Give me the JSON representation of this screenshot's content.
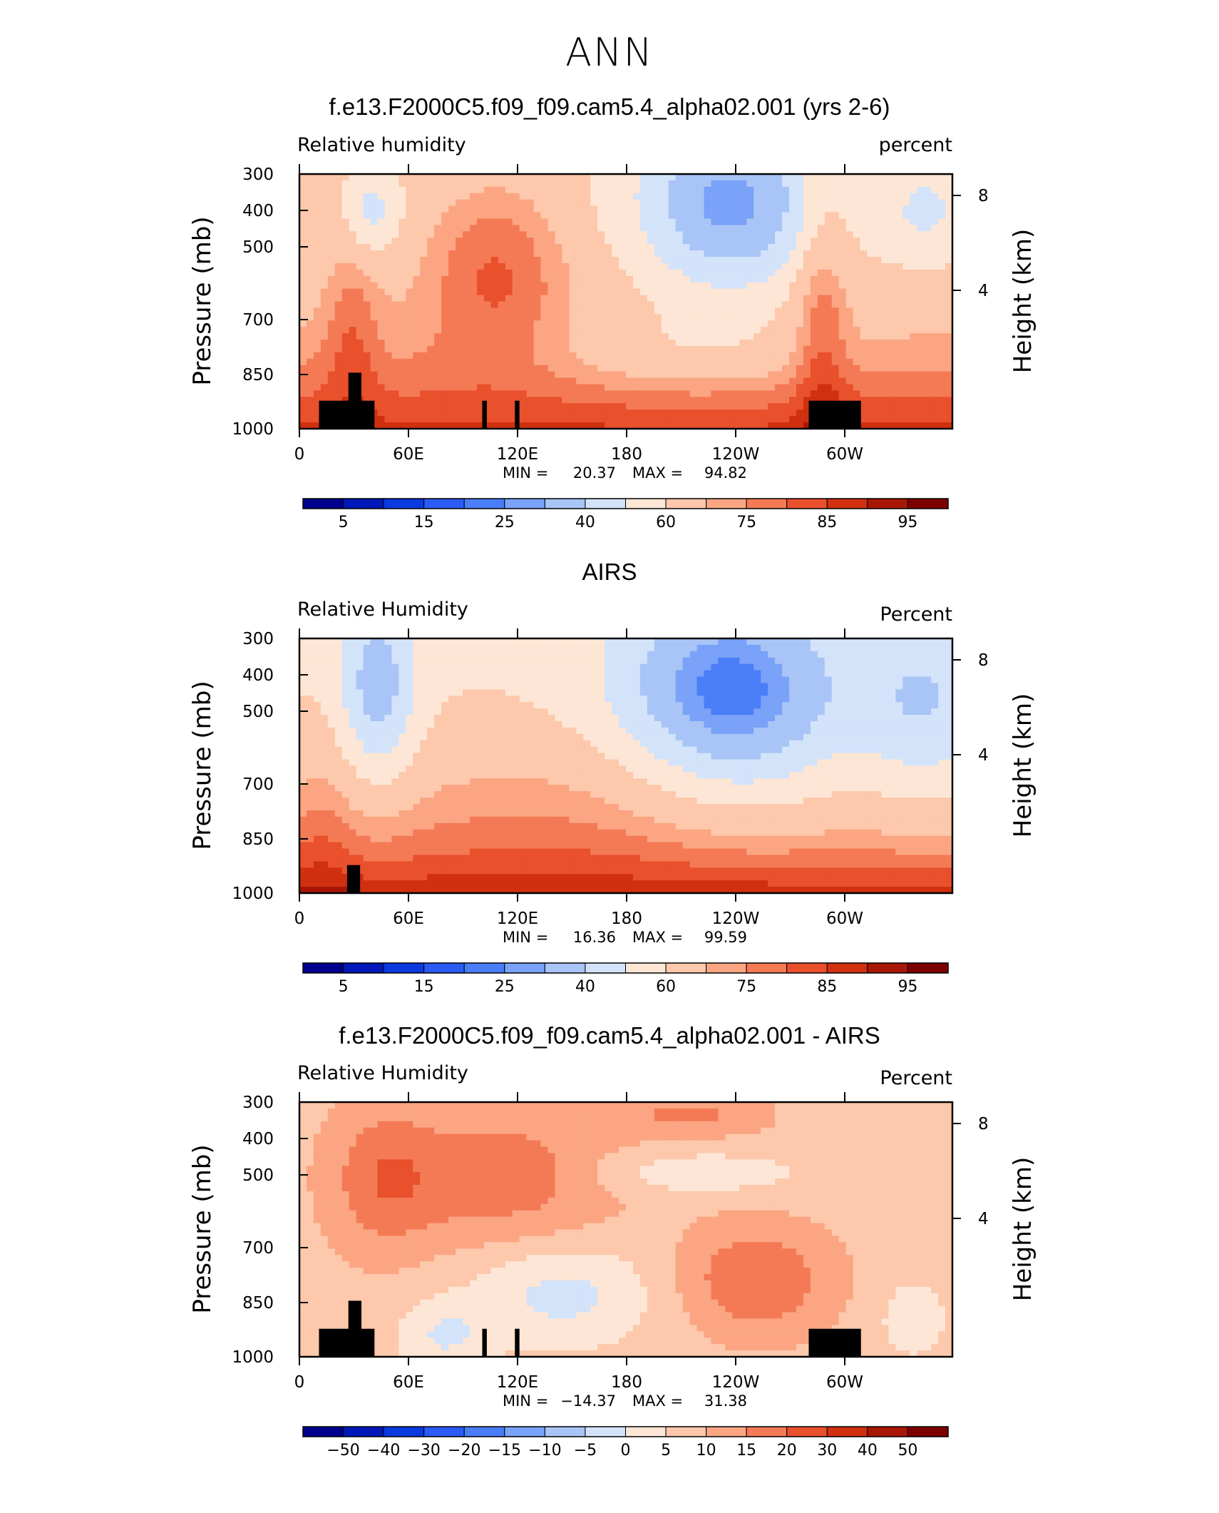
{
  "figure": {
    "title": "ANN"
  },
  "chart_data": [
    {
      "type": "heatmap",
      "title": "f.e13.F2000C5.f09_f09.cam5.4_alpha02.001 (yrs 2-6)",
      "left_label": "Relative  humidity",
      "right_label": "percent",
      "ylabel": "Pressure  (mb)",
      "ylabel_right": "Height  (km)",
      "x_ticklabels": [
        "0",
        "60E",
        "120E",
        "180",
        "120W",
        "60W"
      ],
      "y_ticklabels": [
        "300",
        "400",
        "500",
        "700",
        "850",
        "1000"
      ],
      "y_right_ticklabels": [
        "8",
        "4"
      ],
      "min_label": "MIN  =",
      "min_value": "20.37",
      "max_label": "MAX  =",
      "max_value": "94.82",
      "colorbar_labels": [
        "5",
        "15",
        "25",
        "40",
        "60",
        "75",
        "85",
        "95"
      ],
      "colors": [
        "#00008c",
        "#0018b8",
        "#0a3be0",
        "#2b5af5",
        "#4a7df8",
        "#79a2f8",
        "#a9c4f6",
        "#d3e3fa",
        "#fde6d5",
        "#fdc8ab",
        "#fba583",
        "#f47a55",
        "#e9502c",
        "#d0300f",
        "#a81705",
        "#7d0000"
      ]
    },
    {
      "type": "heatmap",
      "title": "AIRS",
      "left_label": "Relative  Humidity",
      "right_label": "Percent",
      "ylabel": "Pressure  (mb)",
      "ylabel_right": "Height  (km)",
      "x_ticklabels": [
        "0",
        "60E",
        "120E",
        "180",
        "120W",
        "60W"
      ],
      "y_ticklabels": [
        "300",
        "400",
        "500",
        "700",
        "850",
        "1000"
      ],
      "y_right_ticklabels": [
        "8",
        "4"
      ],
      "min_label": "MIN  =",
      "min_value": "16.36",
      "max_label": "MAX  =",
      "max_value": "99.59",
      "colorbar_labels": [
        "5",
        "15",
        "25",
        "40",
        "60",
        "75",
        "85",
        "95"
      ],
      "colors": [
        "#00008c",
        "#0018b8",
        "#0a3be0",
        "#2b5af5",
        "#4a7df8",
        "#79a2f8",
        "#a9c4f6",
        "#d3e3fa",
        "#fde6d5",
        "#fdc8ab",
        "#fba583",
        "#f47a55",
        "#e9502c",
        "#d0300f",
        "#a81705",
        "#7d0000"
      ]
    },
    {
      "type": "heatmap",
      "title": "f.e13.F2000C5.f09_f09.cam5.4_alpha02.001 - AIRS",
      "left_label": "Relative  Humidity",
      "right_label": "Percent",
      "ylabel": "Pressure  (mb)",
      "ylabel_right": "Height  (km)",
      "x_ticklabels": [
        "0",
        "60E",
        "120E",
        "180",
        "120W",
        "60W"
      ],
      "y_ticklabels": [
        "300",
        "400",
        "500",
        "700",
        "850",
        "1000"
      ],
      "y_right_ticklabels": [
        "8",
        "4"
      ],
      "min_label": "MIN  =",
      "min_value": "−14.37",
      "max_label": "MAX  =",
      "max_value": "31.38",
      "colorbar_labels": [
        "−50",
        "−40",
        "−30",
        "−20",
        "−15",
        "−10",
        "−5",
        "0",
        "5",
        "10",
        "15",
        "20",
        "30",
        "40",
        "50"
      ],
      "colors": [
        "#00008c",
        "#0018b8",
        "#0a3be0",
        "#2b5af5",
        "#4a7df8",
        "#79a2f8",
        "#a9c4f6",
        "#d3e3fa",
        "#fde6d5",
        "#fdc8ab",
        "#fba583",
        "#f47a55",
        "#e9502c",
        "#d0300f",
        "#a81705",
        "#7d0000"
      ]
    }
  ]
}
